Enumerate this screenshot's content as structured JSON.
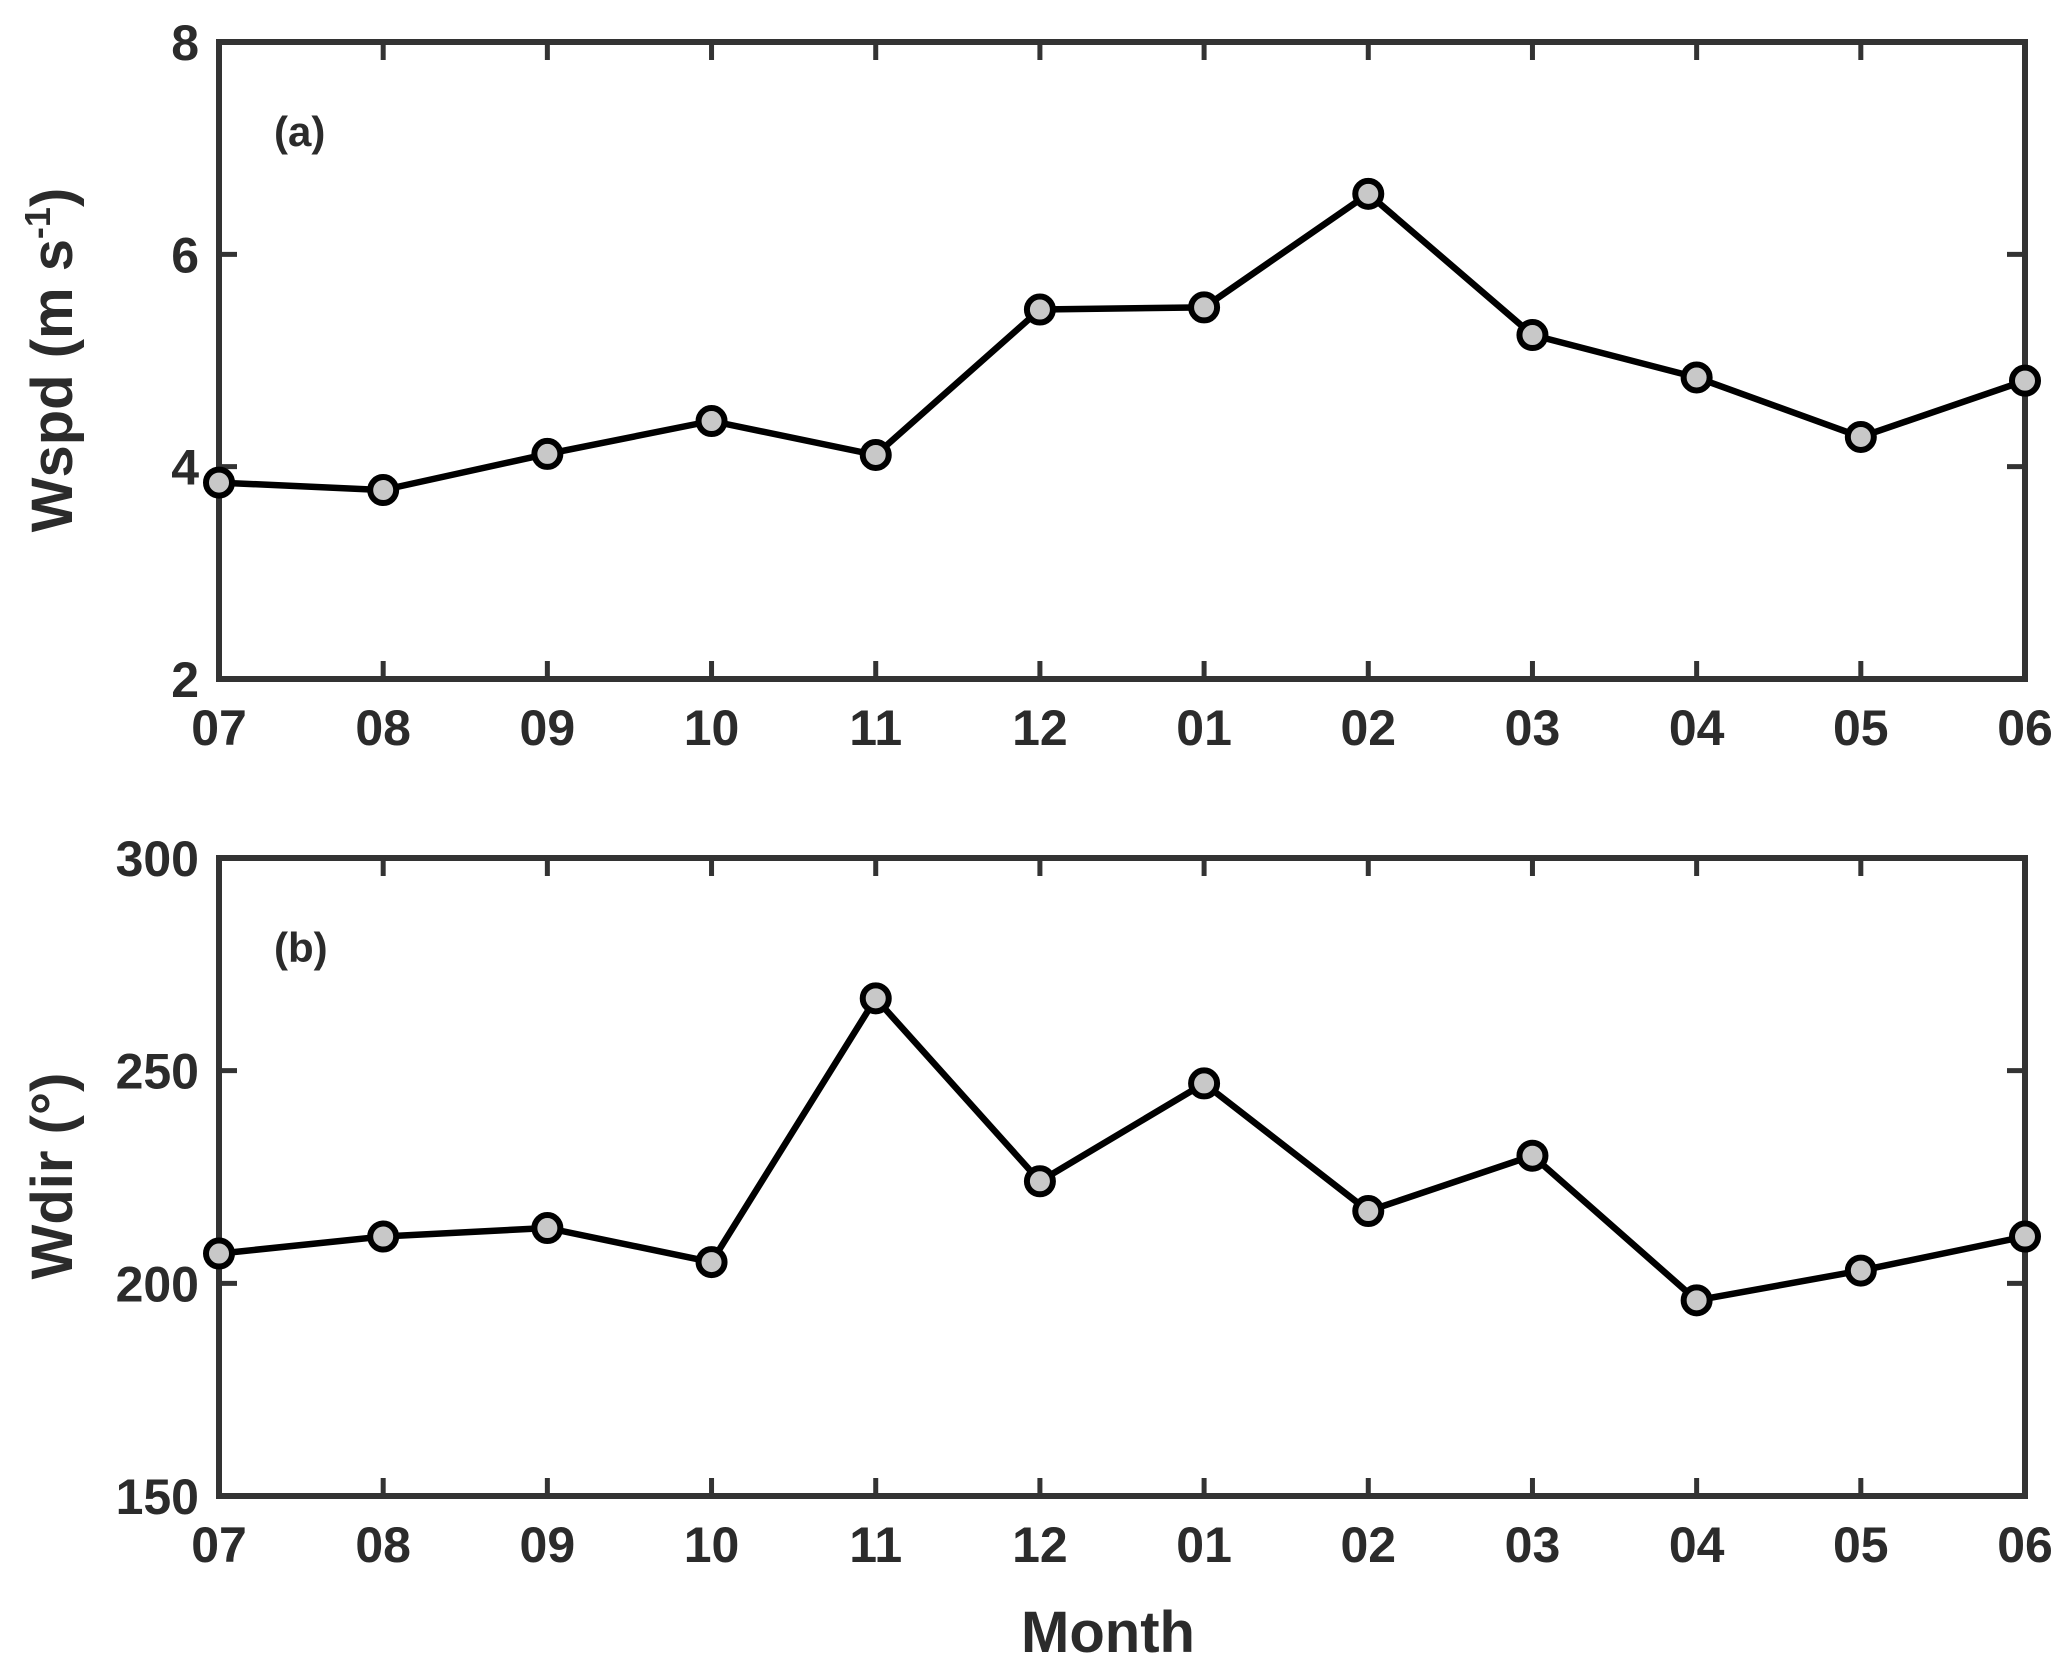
{
  "chart_data": [
    {
      "type": "line",
      "panel_label": "(a)",
      "categories": [
        "07",
        "08",
        "09",
        "10",
        "11",
        "12",
        "01",
        "02",
        "03",
        "04",
        "05",
        "06"
      ],
      "values": [
        3.85,
        3.78,
        4.12,
        4.43,
        4.11,
        5.48,
        5.5,
        6.57,
        5.24,
        4.84,
        4.28,
        4.81
      ],
      "ylabel": "Wspd (m s",
      "ylabel_superscript": "-1",
      "ylabel_suffix": ")",
      "xlabel": "",
      "ylim": [
        2,
        8
      ],
      "yticks": [
        "2",
        "4",
        "6",
        "8"
      ],
      "grid": false,
      "line_color": "#000000",
      "marker_fill": "#c8c8c8"
    },
    {
      "type": "line",
      "panel_label": "(b)",
      "categories": [
        "07",
        "08",
        "09",
        "10",
        "11",
        "12",
        "01",
        "02",
        "03",
        "04",
        "05",
        "06"
      ],
      "values": [
        207,
        211,
        213,
        205,
        267,
        224,
        247,
        217,
        230,
        196,
        203,
        211
      ],
      "ylabel": "Wdir (°)",
      "xlabel": "Month",
      "ylim": [
        150,
        300
      ],
      "yticks": [
        "150",
        "200",
        "250",
        "300"
      ],
      "grid": false,
      "line_color": "#000000",
      "marker_fill": "#c8c8c8"
    }
  ]
}
